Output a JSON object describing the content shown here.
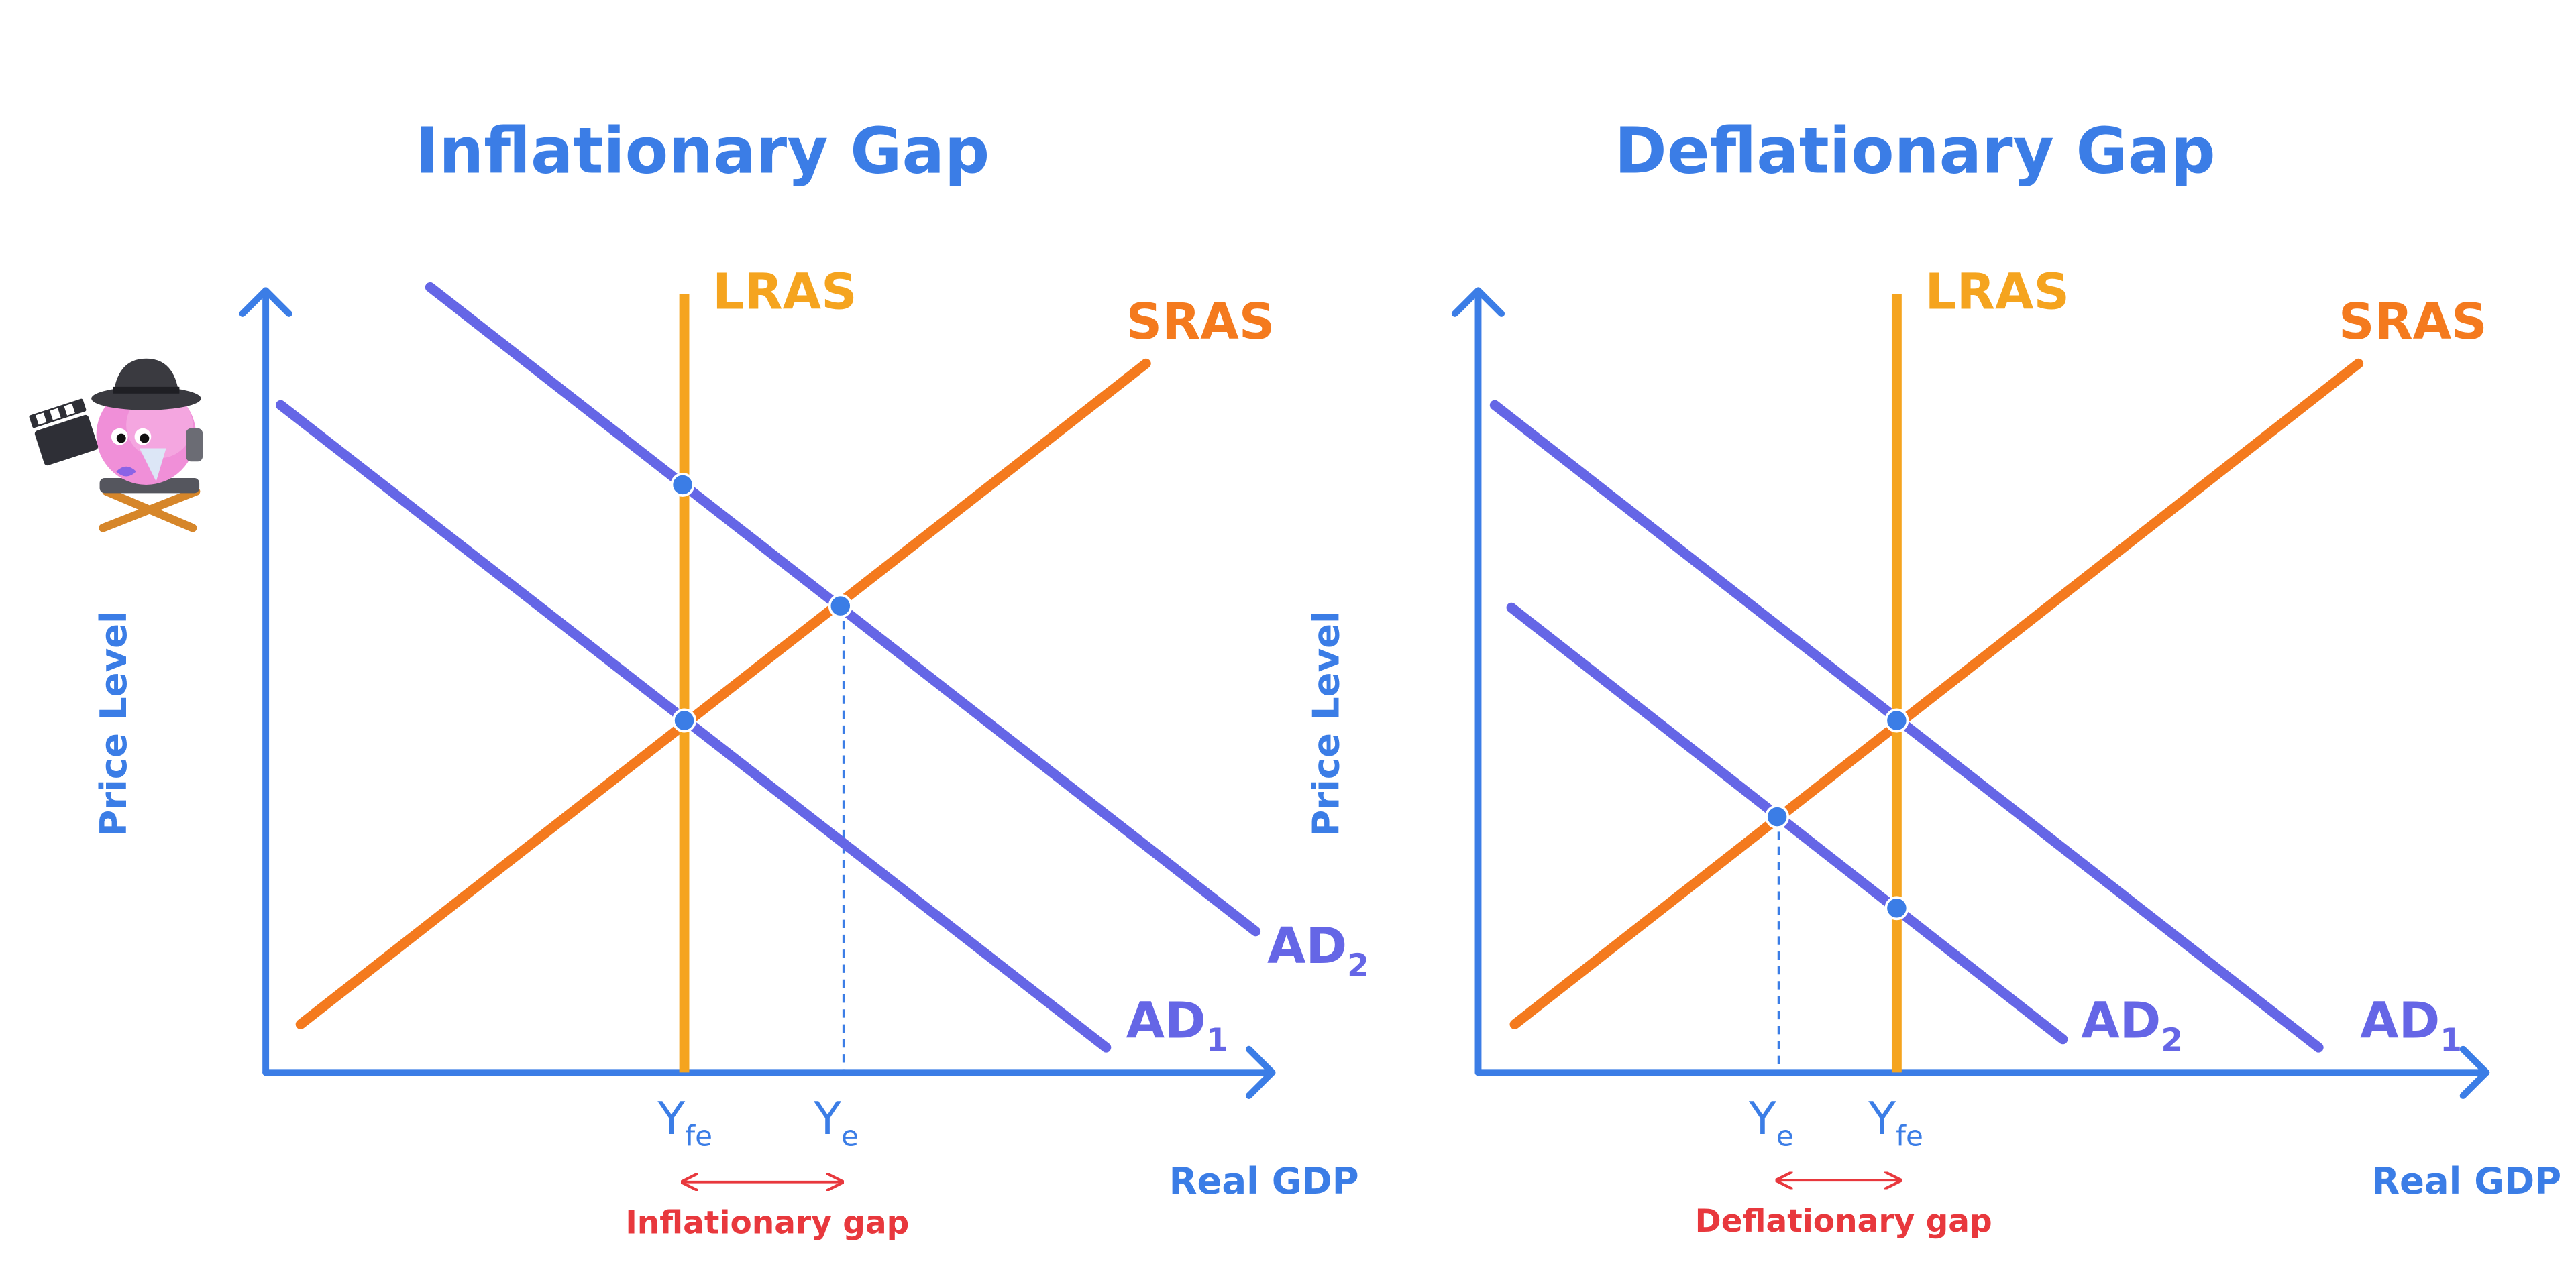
{
  "colors": {
    "axis": "#3b7de6",
    "lras": "#f5a41f",
    "sras": "#f47a1e",
    "ad": "#6566e6",
    "gap": "#e8383d",
    "mascot_body": "#f08fd8",
    "mascot_hat": "#3a3a40",
    "mascot_chair": "#d6862a"
  },
  "mascot": {
    "icon": "director-mascot-icon"
  },
  "panels": [
    {
      "id": "inflationary",
      "title": "Inflationary Gap",
      "ylabel": "Price Level",
      "xlabel": "Real GDP",
      "lras_label": "LRAS",
      "sras_label": "SRAS",
      "ad_lines": [
        {
          "base": "AD",
          "sub": "2"
        },
        {
          "base": "AD",
          "sub": "1"
        }
      ],
      "x_ticks": [
        {
          "base": "Y",
          "sub": "fe"
        },
        {
          "base": "Y",
          "sub": "e"
        }
      ],
      "gap_label": "Inflationary gap"
    },
    {
      "id": "deflationary",
      "title": "Deflationary Gap",
      "ylabel": "Price Level",
      "xlabel": "Real GDP",
      "lras_label": "LRAS",
      "sras_label": "SRAS",
      "ad_lines": [
        {
          "base": "AD",
          "sub": "1"
        },
        {
          "base": "AD",
          "sub": "2"
        }
      ],
      "x_ticks": [
        {
          "base": "Y",
          "sub": "e"
        },
        {
          "base": "Y",
          "sub": "fe"
        }
      ],
      "gap_label": "Deflationary gap"
    }
  ]
}
